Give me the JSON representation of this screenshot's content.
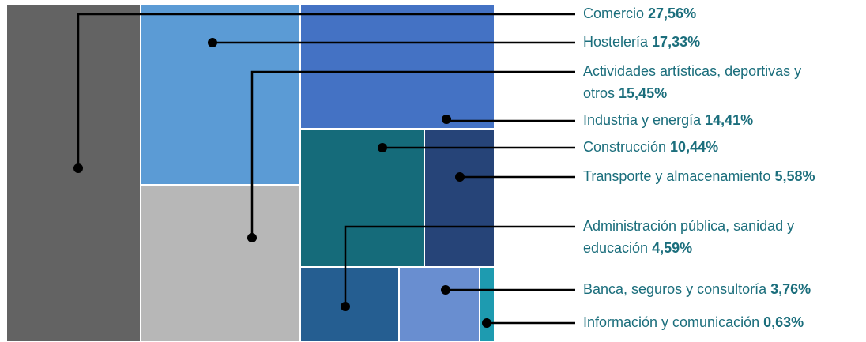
{
  "chart_data": {
    "type": "treemap",
    "title": "",
    "value_unit": "%",
    "items": [
      {
        "name": "Comercio",
        "value_label": "27,56%",
        "value": 27.56,
        "color": "#636363",
        "label_lines": [
          "Comercio"
        ]
      },
      {
        "name": "Hostelería",
        "value_label": "17,33%",
        "value": 17.33,
        "color": "#5b9bd5",
        "label_lines": [
          "Hostelería"
        ]
      },
      {
        "name": "Actividades artísticas, deportivas y otros",
        "value_label": "15,45%",
        "value": 15.45,
        "color": "#b7b7b7",
        "label_lines": [
          "Actividades artísticas, deportivas y",
          "otros"
        ]
      },
      {
        "name": "Industria y energía",
        "value_label": "14,41%",
        "value": 14.41,
        "color": "#4472c4",
        "label_lines": [
          "Industria y energía"
        ]
      },
      {
        "name": "Construcción",
        "value_label": "10,44%",
        "value": 10.44,
        "color": "#156b7a",
        "label_lines": [
          "Construcción"
        ]
      },
      {
        "name": "Transporte y almacenamiento",
        "value_label": "5,58%",
        "value": 5.58,
        "color": "#264478",
        "label_lines": [
          "Transporte y almacenamiento"
        ]
      },
      {
        "name": "Administración pública, sanidad y educación",
        "value_label": "4,59%",
        "value": 4.59,
        "color": "#255e91",
        "label_lines": [
          "Administración pública, sanidad y",
          "educación"
        ]
      },
      {
        "name": "Banca, seguros y consultoría",
        "value_label": "3,76%",
        "value": 3.76,
        "color": "#698ed0",
        "label_lines": [
          "Banca, seguros y consultoría"
        ]
      },
      {
        "name": "Información y comunicación",
        "value_label": "0,63%",
        "value": 0.63,
        "color": "#1e9bb0",
        "label_lines": [
          "Información y comunicación"
        ]
      }
    ]
  }
}
